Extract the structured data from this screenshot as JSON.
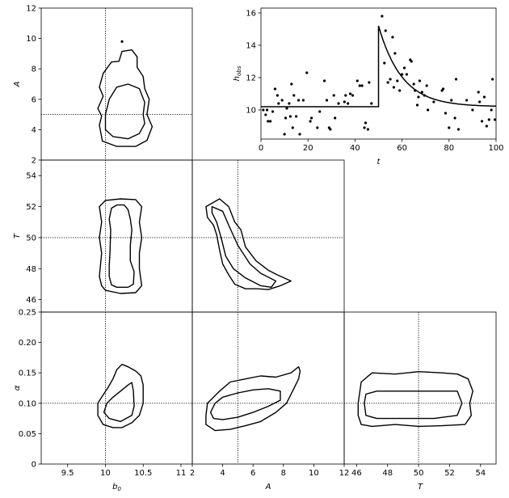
{
  "chart_data": [
    {
      "id": "b0-A",
      "type": "contour",
      "xlabel": "",
      "ylabel": "A",
      "xlim": [
        9.15,
        11.15
      ],
      "ylim": [
        2,
        12
      ],
      "yticks": [
        2,
        4,
        6,
        8,
        10,
        12
      ],
      "truth": {
        "x": 10.0,
        "y": 5.0
      },
      "contours": [
        [
          [
            10.0,
            4.0
          ],
          [
            10.1,
            3.55
          ],
          [
            10.3,
            3.4
          ],
          [
            10.45,
            3.75
          ],
          [
            10.52,
            4.4
          ],
          [
            10.5,
            5.0
          ],
          [
            10.52,
            5.8
          ],
          [
            10.45,
            6.7
          ],
          [
            10.3,
            7.0
          ],
          [
            10.15,
            6.8
          ],
          [
            10.05,
            6.0
          ],
          [
            10.0,
            5.0
          ]
        ],
        [
          [
            9.92,
            4.3
          ],
          [
            9.96,
            3.25
          ],
          [
            10.15,
            2.9
          ],
          [
            10.4,
            2.9
          ],
          [
            10.55,
            3.3
          ],
          [
            10.62,
            4.2
          ],
          [
            10.55,
            5.0
          ],
          [
            10.58,
            6.0
          ],
          [
            10.52,
            6.7
          ],
          [
            10.5,
            7.5
          ],
          [
            10.42,
            8.1
          ],
          [
            10.42,
            8.8
          ],
          [
            10.35,
            9.25
          ],
          [
            10.22,
            9.15
          ],
          [
            10.18,
            8.5
          ],
          [
            10.08,
            8.45
          ],
          [
            9.97,
            7.7
          ],
          [
            9.92,
            6.8
          ],
          [
            9.97,
            6.2
          ],
          [
            9.9,
            5.4
          ],
          [
            9.95,
            4.9
          ]
        ]
      ],
      "points": [
        [
          10.22,
          9.8
        ]
      ]
    },
    {
      "id": "time-series",
      "type": "scatter+line",
      "xlabel": "t",
      "ylabel": "h_obs",
      "xlim": [
        0,
        100
      ],
      "ylim": [
        8.2,
        16.3
      ],
      "xticks": [
        0,
        20,
        40,
        60,
        80,
        100
      ],
      "yticks": [
        10,
        12,
        14,
        16
      ],
      "model": {
        "baseline": 10.2,
        "amplitude": 5.0,
        "onset": 50,
        "alpha": 0.1
      },
      "points": [
        [
          1.0,
          10.0
        ],
        [
          2.0,
          9.7
        ],
        [
          2.6,
          10.0
        ],
        [
          3.0,
          9.3
        ],
        [
          4.0,
          9.3
        ],
        [
          5.0,
          9.9
        ],
        [
          6.0,
          11.3
        ],
        [
          7.0,
          10.9
        ],
        [
          7.5,
          10.4
        ],
        [
          9.0,
          10.6
        ],
        [
          10.0,
          8.5
        ],
        [
          10.5,
          9.5
        ],
        [
          11.0,
          10.1
        ],
        [
          12.0,
          10.4
        ],
        [
          12.5,
          9.6
        ],
        [
          13.0,
          11.6
        ],
        [
          13.5,
          8.9
        ],
        [
          14.0,
          10.9
        ],
        [
          15.0,
          9.6
        ],
        [
          16.0,
          10.6
        ],
        [
          16.5,
          8.5
        ],
        [
          18.0,
          10.6
        ],
        [
          19.5,
          12.3
        ],
        [
          21.0,
          9.3
        ],
        [
          21.5,
          9.5
        ],
        [
          24.0,
          8.9
        ],
        [
          25.0,
          9.9
        ],
        [
          27.0,
          11.8
        ],
        [
          28.0,
          10.6
        ],
        [
          29.0,
          8.9
        ],
        [
          29.5,
          8.8
        ],
        [
          31.0,
          10.9
        ],
        [
          31.5,
          9.5
        ],
        [
          33.0,
          10.4
        ],
        [
          35.5,
          10.5
        ],
        [
          36.0,
          10.9
        ],
        [
          37.0,
          10.4
        ],
        [
          38.0,
          11.0
        ],
        [
          39.0,
          10.9
        ],
        [
          41.0,
          11.8
        ],
        [
          42.0,
          11.5
        ],
        [
          43.0,
          11.5
        ],
        [
          44.0,
          8.9
        ],
        [
          44.5,
          9.2
        ],
        [
          45.5,
          8.8
        ],
        [
          46.0,
          11.7
        ],
        [
          47.0,
          10.4
        ],
        [
          51.5,
          15.8
        ],
        [
          52.5,
          12.9
        ],
        [
          53.0,
          14.9
        ],
        [
          54.0,
          11.7
        ],
        [
          55.0,
          11.9
        ],
        [
          56.0,
          14.5
        ],
        [
          56.5,
          11.4
        ],
        [
          57.0,
          13.5
        ],
        [
          58.0,
          11.8
        ],
        [
          59.0,
          11.2
        ],
        [
          60.0,
          12.2
        ],
        [
          61.0,
          12.6
        ],
        [
          62.0,
          12.2
        ],
        [
          63.5,
          13.1
        ],
        [
          64.0,
          13.0
        ],
        [
          65.0,
          11.6
        ],
        [
          65.5,
          11.2
        ],
        [
          66.5,
          10.3
        ],
        [
          67.0,
          10.8
        ],
        [
          67.5,
          11.8
        ],
        [
          68.5,
          11.1
        ],
        [
          69.5,
          10.9
        ],
        [
          70.5,
          11.5
        ],
        [
          71.0,
          10.0
        ],
        [
          73.5,
          10.5
        ],
        [
          77.0,
          11.2
        ],
        [
          77.5,
          11.3
        ],
        [
          78.5,
          9.8
        ],
        [
          80.0,
          8.9
        ],
        [
          81.0,
          10.6
        ],
        [
          82.5,
          9.5
        ],
        [
          83.0,
          11.9
        ],
        [
          84.0,
          8.8
        ],
        [
          87.5,
          10.6
        ],
        [
          90.0,
          10.0
        ],
        [
          92.5,
          11.1
        ],
        [
          93.0,
          10.5
        ],
        [
          94.0,
          9.3
        ],
        [
          95.0,
          10.8
        ],
        [
          96.0,
          9.0
        ],
        [
          97.0,
          9.4
        ],
        [
          98.0,
          10.0
        ],
        [
          98.5,
          11.9
        ],
        [
          99.5,
          9.4
        ]
      ]
    },
    {
      "id": "b0-T",
      "type": "contour",
      "xlabel": "",
      "ylabel": "T",
      "xlim": [
        9.15,
        11.15
      ],
      "ylim": [
        45.2,
        55.0
      ],
      "yticks": [
        46,
        48,
        50,
        52,
        54
      ],
      "truth": {
        "x": 10.0,
        "y": 50.0
      },
      "contours": [
        [
          [
            10.05,
            47.5
          ],
          [
            10.08,
            46.95
          ],
          [
            10.15,
            46.8
          ],
          [
            10.3,
            46.8
          ],
          [
            10.37,
            47.0
          ],
          [
            10.38,
            47.8
          ],
          [
            10.33,
            48.5
          ],
          [
            10.33,
            49.5
          ],
          [
            10.35,
            50.5
          ],
          [
            10.33,
            51.2
          ],
          [
            10.3,
            51.8
          ],
          [
            10.25,
            52.1
          ],
          [
            10.15,
            52.1
          ],
          [
            10.08,
            51.9
          ],
          [
            10.05,
            51.2
          ],
          [
            10.07,
            50.5
          ],
          [
            10.06,
            49.0
          ],
          [
            10.05,
            48.2
          ]
        ],
        [
          [
            9.92,
            47.5
          ],
          [
            9.95,
            46.9
          ],
          [
            10.0,
            46.6
          ],
          [
            10.2,
            46.4
          ],
          [
            10.4,
            46.45
          ],
          [
            10.48,
            46.9
          ],
          [
            10.45,
            48.0
          ],
          [
            10.45,
            49.0
          ],
          [
            10.48,
            50.0
          ],
          [
            10.45,
            51.0
          ],
          [
            10.48,
            52.0
          ],
          [
            10.4,
            52.45
          ],
          [
            10.2,
            52.5
          ],
          [
            10.0,
            52.4
          ],
          [
            9.92,
            52.0
          ],
          [
            9.95,
            51.0
          ],
          [
            9.92,
            50.0
          ],
          [
            9.95,
            49.0
          ]
        ]
      ],
      "points": []
    },
    {
      "id": "A-T",
      "type": "contour",
      "xlabel": "",
      "ylabel": "",
      "xlim": [
        2,
        12
      ],
      "ylim": [
        45.2,
        55.0
      ],
      "yticks": [],
      "truth": {
        "x": 5.0,
        "y": 50.0
      },
      "contours": [
        [
          [
            3.3,
            52.0
          ],
          [
            4.0,
            51.7
          ],
          [
            4.4,
            50.8
          ],
          [
            5.0,
            49.5
          ],
          [
            5.8,
            48.3
          ],
          [
            6.5,
            47.7
          ],
          [
            7.5,
            47.2
          ],
          [
            7.2,
            46.8
          ],
          [
            6.5,
            46.9
          ],
          [
            5.5,
            47.4
          ],
          [
            4.7,
            48.0
          ],
          [
            4.2,
            48.8
          ],
          [
            3.9,
            50.0
          ],
          [
            3.6,
            51.0
          ],
          [
            3.3,
            51.6
          ]
        ],
        [
          [
            2.9,
            52.0
          ],
          [
            3.8,
            52.5
          ],
          [
            4.4,
            52.0
          ],
          [
            4.8,
            51.0
          ],
          [
            5.2,
            50.5
          ],
          [
            5.5,
            49.4
          ],
          [
            6.2,
            48.5
          ],
          [
            7.0,
            47.9
          ],
          [
            7.6,
            47.6
          ],
          [
            8.5,
            47.2
          ],
          [
            7.8,
            46.9
          ],
          [
            7.0,
            46.65
          ],
          [
            6.3,
            46.7
          ],
          [
            5.5,
            46.7
          ],
          [
            4.8,
            47.0
          ],
          [
            4.4,
            47.6
          ],
          [
            4.0,
            48.3
          ],
          [
            3.8,
            49.2
          ],
          [
            3.6,
            50.2
          ],
          [
            3.4,
            50.8
          ],
          [
            3.0,
            51.3
          ]
        ]
      ],
      "points": []
    },
    {
      "id": "b0-alpha",
      "type": "contour",
      "xlabel": "b0",
      "ylabel": "α",
      "xlim": [
        9.15,
        11.15
      ],
      "ylim": [
        0.0,
        0.25
      ],
      "xticks": [
        9.5,
        10.0,
        10.5,
        11.0
      ],
      "yticks": [
        0.0,
        0.05,
        0.1,
        0.15,
        0.2,
        0.25
      ],
      "truth": {
        "x": 10.0,
        "y": 0.1
      },
      "contours": [
        [
          [
            9.98,
            0.085
          ],
          [
            10.05,
            0.075
          ],
          [
            10.2,
            0.07
          ],
          [
            10.35,
            0.08
          ],
          [
            10.38,
            0.095
          ],
          [
            10.37,
            0.12
          ],
          [
            10.35,
            0.134
          ],
          [
            10.3,
            0.13
          ],
          [
            10.2,
            0.12
          ],
          [
            10.1,
            0.11
          ],
          [
            10.02,
            0.1
          ]
        ],
        [
          [
            9.9,
            0.08
          ],
          [
            9.97,
            0.065
          ],
          [
            10.1,
            0.06
          ],
          [
            10.22,
            0.06
          ],
          [
            10.35,
            0.068
          ],
          [
            10.45,
            0.08
          ],
          [
            10.5,
            0.1
          ],
          [
            10.5,
            0.13
          ],
          [
            10.47,
            0.145
          ],
          [
            10.4,
            0.153
          ],
          [
            10.3,
            0.16
          ],
          [
            10.22,
            0.164
          ],
          [
            10.15,
            0.155
          ],
          [
            10.1,
            0.14
          ],
          [
            10.03,
            0.125
          ],
          [
            9.95,
            0.11
          ],
          [
            9.9,
            0.1
          ]
        ]
      ],
      "points": []
    },
    {
      "id": "A-alpha",
      "type": "contour",
      "xlabel": "A",
      "ylabel": "",
      "xlim": [
        2,
        12
      ],
      "ylim": [
        0.0,
        0.25
      ],
      "xticks": [
        2,
        4,
        6,
        8,
        10,
        12
      ],
      "yticks": [],
      "truth": {
        "x": 5.0,
        "y": 0.1
      },
      "contours": [
        [
          [
            3.2,
            0.085
          ],
          [
            3.5,
            0.1
          ],
          [
            4.0,
            0.11
          ],
          [
            5.0,
            0.117
          ],
          [
            6.0,
            0.122
          ],
          [
            7.0,
            0.124
          ],
          [
            7.8,
            0.12
          ],
          [
            7.8,
            0.105
          ],
          [
            7.0,
            0.095
          ],
          [
            6.0,
            0.085
          ],
          [
            5.0,
            0.077
          ],
          [
            4.0,
            0.073
          ],
          [
            3.4,
            0.075
          ]
        ],
        [
          [
            2.9,
            0.08
          ],
          [
            3.0,
            0.1
          ],
          [
            3.8,
            0.12
          ],
          [
            4.5,
            0.135
          ],
          [
            5.5,
            0.14
          ],
          [
            6.5,
            0.145
          ],
          [
            7.5,
            0.143
          ],
          [
            8.5,
            0.15
          ],
          [
            9.0,
            0.16
          ],
          [
            9.1,
            0.153
          ],
          [
            9.0,
            0.14
          ],
          [
            8.6,
            0.12
          ],
          [
            8.2,
            0.1
          ],
          [
            7.5,
            0.085
          ],
          [
            6.5,
            0.07
          ],
          [
            5.5,
            0.063
          ],
          [
            4.5,
            0.057
          ],
          [
            3.5,
            0.055
          ],
          [
            2.9,
            0.065
          ]
        ]
      ],
      "points": []
    },
    {
      "id": "T-alpha",
      "type": "contour",
      "xlabel": "T",
      "ylabel": "",
      "xlim": [
        45.2,
        55.0
      ],
      "ylim": [
        0.0,
        0.25
      ],
      "xticks": [
        46,
        48,
        50,
        52,
        54
      ],
      "yticks": [],
      "truth": {
        "x": 50.0,
        "y": 0.1
      },
      "contours": [
        [
          [
            46.5,
            0.1
          ],
          [
            46.6,
            0.115
          ],
          [
            47.3,
            0.12
          ],
          [
            49.0,
            0.12
          ],
          [
            51.0,
            0.12
          ],
          [
            52.5,
            0.12
          ],
          [
            52.8,
            0.1
          ],
          [
            52.5,
            0.08
          ],
          [
            51.0,
            0.075
          ],
          [
            49.0,
            0.075
          ],
          [
            47.3,
            0.075
          ],
          [
            46.6,
            0.08
          ]
        ],
        [
          [
            46.1,
            0.1
          ],
          [
            46.3,
            0.135
          ],
          [
            47.0,
            0.15
          ],
          [
            48.5,
            0.148
          ],
          [
            50.0,
            0.152
          ],
          [
            51.5,
            0.15
          ],
          [
            52.5,
            0.148
          ],
          [
            53.2,
            0.14
          ],
          [
            53.5,
            0.12
          ],
          [
            53.3,
            0.1
          ],
          [
            53.4,
            0.08
          ],
          [
            53.0,
            0.065
          ],
          [
            51.5,
            0.063
          ],
          [
            50.0,
            0.062
          ],
          [
            48.5,
            0.065
          ],
          [
            47.0,
            0.062
          ],
          [
            46.3,
            0.065
          ],
          [
            46.1,
            0.08
          ]
        ]
      ],
      "points": []
    }
  ]
}
